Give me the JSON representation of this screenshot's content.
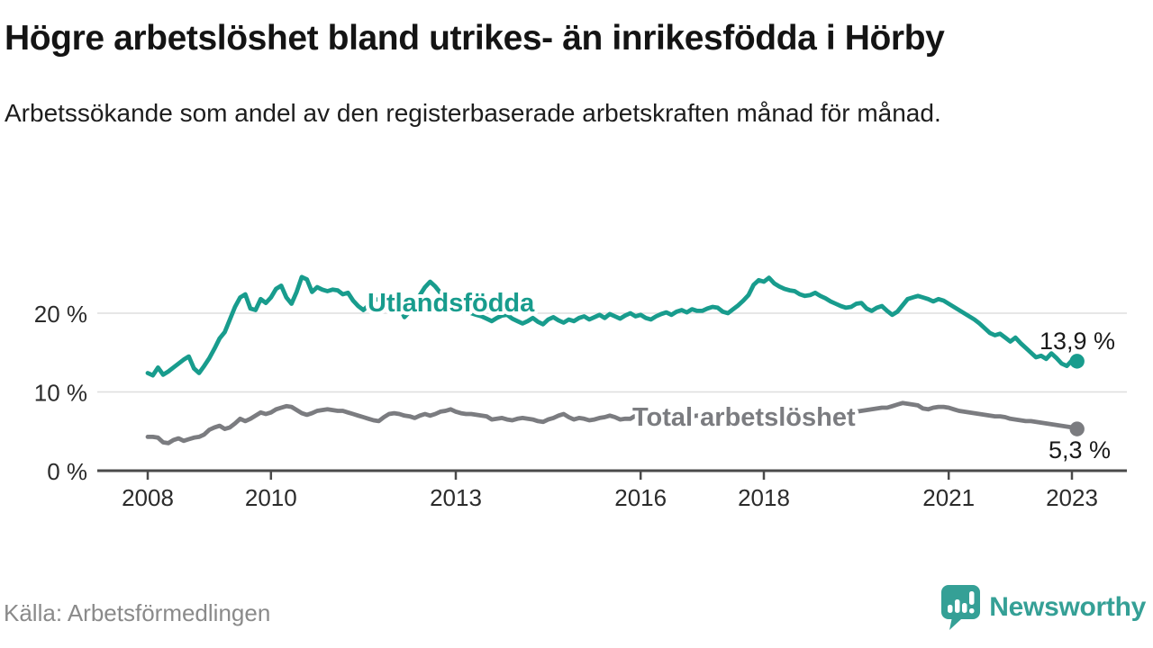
{
  "colors": {
    "accent_teal": "#189C8D",
    "line_gray": "#7B7C80",
    "grid": "#DEDEDE",
    "axis": "#4A4A4A",
    "text_dark": "#1A1A1A",
    "text_muted": "#8A8A8A",
    "brand_teal": "#35A096"
  },
  "footer": {
    "source": "Källa: Arbetsförmedlingen",
    "brand": "Newsworthy"
  },
  "chart_data": {
    "type": "line",
    "title": "Högre arbetslöshet bland utrikes- än inrikesfödda i Hörby",
    "subtitle": "Arbetssökande som andel av den registerbaserade arbetskraften månad för månad.",
    "x_start_year": 2008,
    "x_interval_months": 1,
    "x_range": [
      "2008-01",
      "2023-02"
    ],
    "ylim": [
      0,
      26
    ],
    "grid": "horizontal-only",
    "legend_position": "inline-labels",
    "y_ticks": [
      {
        "value": 0,
        "label": "0 %"
      },
      {
        "value": 10,
        "label": "10 %"
      },
      {
        "value": 20,
        "label": "20 %"
      }
    ],
    "x_ticks": [
      {
        "year": 2008,
        "label": "2008"
      },
      {
        "year": 2010,
        "label": "2010"
      },
      {
        "year": 2013,
        "label": "2013"
      },
      {
        "year": 2016,
        "label": "2016"
      },
      {
        "year": 2018,
        "label": "2018"
      },
      {
        "year": 2021,
        "label": "2021"
      },
      {
        "year": 2023,
        "label": "2023"
      }
    ],
    "series": [
      {
        "name": "Utlandsfödda",
        "color": "#189C8D",
        "end_label": "13,9 %",
        "values": [
          12.4,
          12.1,
          13.1,
          12.2,
          12.6,
          13.1,
          13.6,
          14.1,
          14.5,
          13.0,
          12.4,
          13.3,
          14.3,
          15.5,
          16.8,
          17.6,
          19.2,
          20.8,
          22.0,
          22.4,
          20.6,
          20.4,
          21.8,
          21.3,
          22.0,
          23.1,
          23.5,
          22.0,
          21.2,
          22.7,
          24.6,
          24.3,
          22.7,
          23.3,
          23.0,
          22.8,
          23.0,
          22.9,
          22.4,
          22.6,
          21.6,
          20.9,
          20.4,
          21.0,
          21.8,
          21.7,
          21.6,
          20.5,
          20.4,
          20.9,
          19.5,
          20.2,
          21.3,
          22.3,
          23.3,
          24.0,
          23.4,
          22.6,
          22.0,
          21.4,
          21.0,
          20.6,
          20.3,
          20.0,
          19.8,
          19.6,
          19.3,
          19.0,
          19.4,
          19.7,
          19.8,
          19.3,
          19.0,
          18.7,
          19.0,
          19.4,
          18.9,
          18.6,
          19.2,
          19.5,
          19.1,
          18.8,
          19.2,
          19.0,
          19.4,
          19.6,
          19.2,
          19.5,
          19.8,
          19.4,
          19.9,
          19.6,
          19.3,
          19.7,
          20.0,
          19.6,
          19.8,
          19.4,
          19.2,
          19.6,
          19.9,
          20.1,
          19.8,
          20.2,
          20.4,
          20.1,
          20.5,
          20.3,
          20.3,
          20.6,
          20.8,
          20.7,
          20.2,
          20.0,
          20.5,
          21.0,
          21.6,
          22.3,
          23.6,
          24.2,
          24.0,
          24.5,
          23.8,
          23.4,
          23.1,
          22.9,
          22.8,
          22.4,
          22.2,
          22.3,
          22.6,
          22.2,
          21.9,
          21.5,
          21.2,
          20.9,
          20.7,
          20.8,
          21.2,
          21.3,
          20.6,
          20.3,
          20.7,
          20.9,
          20.3,
          19.8,
          20.2,
          21.0,
          21.8,
          22.0,
          22.2,
          22.0,
          21.8,
          21.5,
          21.8,
          21.6,
          21.2,
          20.8,
          20.4,
          20.0,
          19.6,
          19.2,
          18.7,
          18.1,
          17.5,
          17.2,
          17.4,
          16.9,
          16.4,
          16.9,
          16.2,
          15.6,
          15.0,
          14.4,
          14.6,
          14.2,
          14.9,
          14.3,
          13.6,
          13.3,
          14.0,
          13.9
        ]
      },
      {
        "name": "Total arbetslöshet",
        "color": "#7B7C80",
        "end_label": "5,3 %",
        "values": [
          4.3,
          4.3,
          4.2,
          3.6,
          3.5,
          3.9,
          4.1,
          3.8,
          4.0,
          4.2,
          4.3,
          4.6,
          5.2,
          5.5,
          5.7,
          5.3,
          5.5,
          6.0,
          6.6,
          6.3,
          6.6,
          7.0,
          7.4,
          7.2,
          7.4,
          7.8,
          8.0,
          8.2,
          8.1,
          7.7,
          7.3,
          7.1,
          7.3,
          7.6,
          7.7,
          7.8,
          7.7,
          7.6,
          7.6,
          7.4,
          7.2,
          7.0,
          6.8,
          6.6,
          6.4,
          6.3,
          6.8,
          7.2,
          7.3,
          7.2,
          7.0,
          6.9,
          6.7,
          7.0,
          7.2,
          7.0,
          7.2,
          7.5,
          7.6,
          7.8,
          7.5,
          7.3,
          7.2,
          7.2,
          7.1,
          7.0,
          6.9,
          6.5,
          6.6,
          6.7,
          6.5,
          6.4,
          6.6,
          6.7,
          6.6,
          6.5,
          6.3,
          6.2,
          6.5,
          6.7,
          7.0,
          7.2,
          6.8,
          6.5,
          6.7,
          6.6,
          6.4,
          6.5,
          6.7,
          6.8,
          7.0,
          6.8,
          6.5,
          6.6,
          6.6,
          7.0,
          7.0,
          7.1,
          6.9,
          6.8,
          6.7,
          6.8,
          6.9,
          6.8,
          6.7,
          6.8,
          6.9,
          7.0,
          6.9,
          6.8,
          6.7,
          6.6,
          6.6,
          6.7,
          6.8,
          6.7,
          6.6,
          6.7,
          6.8,
          6.9,
          6.8,
          6.7,
          6.6,
          6.5,
          6.5,
          6.6,
          6.7,
          6.8,
          6.9,
          7.0,
          7.1,
          7.2,
          7.1,
          7.0,
          7.1,
          7.2,
          7.3,
          7.4,
          7.5,
          7.6,
          7.7,
          7.8,
          7.9,
          8.0,
          8.0,
          8.2,
          8.4,
          8.6,
          8.5,
          8.4,
          8.3,
          7.9,
          7.8,
          8.0,
          8.1,
          8.1,
          8.0,
          7.8,
          7.6,
          7.5,
          7.4,
          7.3,
          7.2,
          7.1,
          7.0,
          6.9,
          6.9,
          6.8,
          6.6,
          6.5,
          6.4,
          6.3,
          6.3,
          6.2,
          6.1,
          6.0,
          5.9,
          5.8,
          5.7,
          5.6,
          5.5,
          5.3
        ]
      }
    ]
  }
}
